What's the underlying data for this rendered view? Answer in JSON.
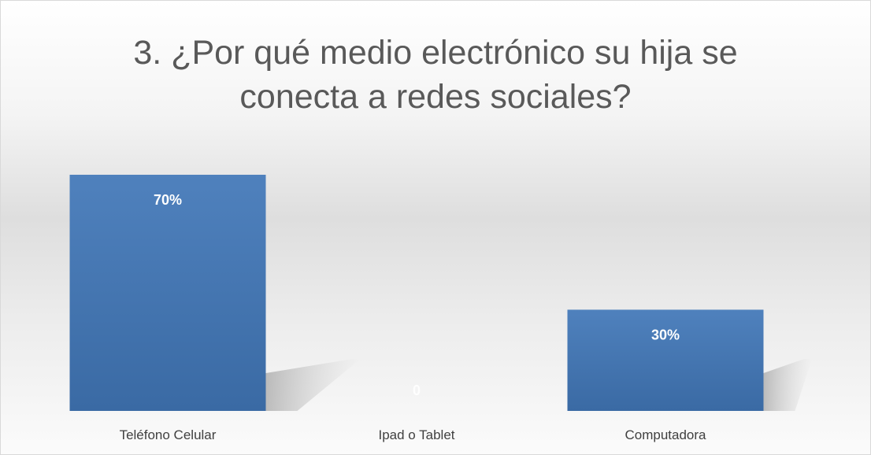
{
  "chart_data": {
    "type": "bar",
    "title_lines": [
      "3. ¿Por qué medio electrónico su hija se",
      "conecta a redes sociales?"
    ],
    "categories": [
      "Teléfono Celular",
      "Ipad o Tablet",
      "Computadora"
    ],
    "values": [
      70,
      0,
      30
    ],
    "data_labels": [
      "70%",
      "0",
      "30%"
    ],
    "ylim": [
      0,
      70
    ],
    "grid": false,
    "legend": "none",
    "bar_color_top": "#4f81bd",
    "bar_color_bottom": "#3a6aa4",
    "label_color": "#ffffff"
  }
}
